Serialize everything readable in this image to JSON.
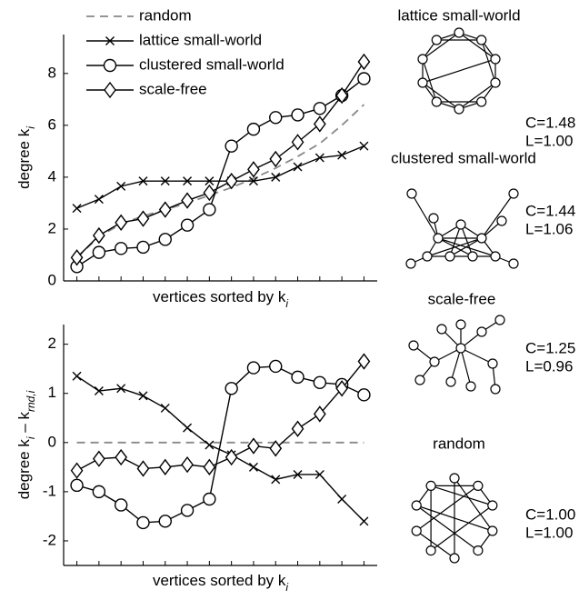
{
  "chart_data": [
    {
      "type": "line",
      "xlabel": [
        {
          "text": "vertices sorted by k",
          "sub": "i"
        }
      ],
      "ylabel": [
        {
          "text": "degree k",
          "sub": "i"
        }
      ],
      "x": [
        1,
        2,
        3,
        4,
        5,
        6,
        7,
        8,
        9,
        10,
        11,
        12,
        13,
        14
      ],
      "xlim": [
        0.4,
        14.6
      ],
      "ylim": [
        0,
        9.5
      ],
      "yticks": [
        0,
        2,
        4,
        6,
        8
      ],
      "legend": "upper left",
      "series": [
        {
          "name": "random",
          "color": "#888888",
          "dash": true,
          "marker": null,
          "values": [
            0.9,
            1.7,
            2.2,
            2.5,
            2.75,
            3.0,
            3.3,
            3.6,
            3.95,
            4.35,
            4.8,
            5.3,
            6.0,
            6.8
          ]
        },
        {
          "name": "lattice small-world",
          "color": "#000000",
          "marker": "x",
          "values": [
            2.8,
            3.15,
            3.65,
            3.85,
            3.85,
            3.85,
            3.85,
            3.85,
            3.85,
            4.0,
            4.4,
            4.75,
            4.85,
            5.2
          ]
        },
        {
          "name": "clustered small-world",
          "color": "#000000",
          "marker": "o",
          "values": [
            0.55,
            1.1,
            1.25,
            1.3,
            1.6,
            2.15,
            2.75,
            5.2,
            5.85,
            6.3,
            6.4,
            6.65,
            7.15,
            7.8
          ]
        },
        {
          "name": "scale-free",
          "color": "#000000",
          "marker": "d",
          "values": [
            0.9,
            1.75,
            2.25,
            2.4,
            2.75,
            3.1,
            3.4,
            3.85,
            4.3,
            4.7,
            5.35,
            6.05,
            7.15,
            8.45
          ]
        }
      ]
    },
    {
      "type": "line",
      "xlabel": [
        {
          "text": "vertices sorted by k",
          "sub": "i"
        }
      ],
      "ylabel": [
        {
          "text": "degree k",
          "sub": "i"
        },
        {
          "text": " – k",
          "sub": "rnd,i"
        }
      ],
      "x": [
        1,
        2,
        3,
        4,
        5,
        6,
        7,
        8,
        9,
        10,
        11,
        12,
        13,
        14
      ],
      "xlim": [
        0.4,
        14.6
      ],
      "ylim": [
        -2.5,
        2.4
      ],
      "yticks": [
        -2,
        -1,
        0,
        1,
        2
      ],
      "series": [
        {
          "color": "#888888",
          "dash": true,
          "marker": null,
          "values": [
            0,
            0,
            0,
            0,
            0,
            0,
            0,
            0,
            0,
            0,
            0,
            0,
            0,
            0
          ]
        },
        {
          "color": "#000000",
          "marker": "x",
          "values": [
            1.35,
            1.05,
            1.1,
            0.95,
            0.7,
            0.3,
            -0.05,
            -0.25,
            -0.5,
            -0.75,
            -0.65,
            -0.65,
            -1.15,
            -1.6
          ]
        },
        {
          "color": "#000000",
          "marker": "o",
          "values": [
            -0.87,
            -1.0,
            -1.27,
            -1.63,
            -1.6,
            -1.38,
            -1.15,
            1.1,
            1.52,
            1.55,
            1.33,
            1.22,
            1.18,
            0.97
          ]
        },
        {
          "color": "#000000",
          "marker": "d",
          "values": [
            -0.57,
            -0.33,
            -0.3,
            -0.53,
            -0.5,
            -0.45,
            -0.5,
            -0.3,
            -0.07,
            -0.12,
            0.28,
            0.58,
            1.1,
            1.65
          ]
        }
      ]
    }
  ],
  "networks": [
    {
      "title": "lattice small-world",
      "c": "C=1.48",
      "l": "L=1.00"
    },
    {
      "title": "clustered small-world",
      "c": "C=1.44",
      "l": "L=1.06"
    },
    {
      "title": "scale-free",
      "c": "C=1.25",
      "l": "L=0.96"
    },
    {
      "title": "random",
      "c": "C=1.00",
      "l": "L=1.00"
    }
  ]
}
